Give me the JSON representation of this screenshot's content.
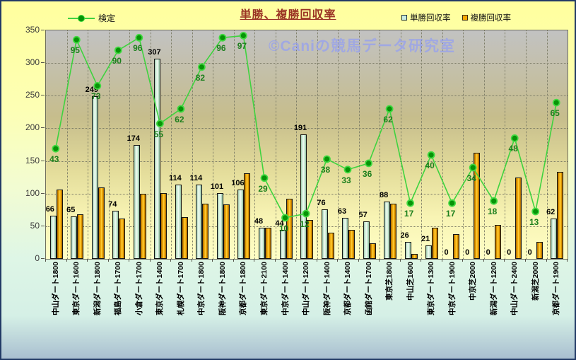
{
  "title": "単勝、複勝回収率",
  "watermark": "©Caniの競馬データ研究室",
  "legend": {
    "line_series": "検定",
    "bar_series_1": "単勝回収率",
    "bar_series_2": "複勝回収率"
  },
  "colors": {
    "title": "#9a3324",
    "kentei_line": "#3fd33f",
    "kentei_marker": "#079407",
    "kentei_label": "#1c7f1c",
    "tansho_fill": "#eefaf1",
    "fukusho_fill": "#f5a800",
    "watermark": "#9aa4ea",
    "plot_top": "#c2c2c2",
    "plot_bottom": "#ffffc6"
  },
  "y_ticks": [
    350,
    300,
    250,
    200,
    150,
    100,
    50,
    0
  ],
  "chart_data": {
    "type": "bar",
    "subtype": "grouped bars + line on hidden secondary axis",
    "title": "単勝、複勝回収率",
    "xlabel": "",
    "ylabel": "",
    "ylim": [
      0,
      350
    ],
    "ytick_step": 50,
    "grid": "dotted horizontal and vertical",
    "legend_position": "top",
    "categories": [
      "中山ダート1800",
      "東京ダート1600",
      "新潟ダート1800",
      "福島ダート1700",
      "小倉ダート1700",
      "東京ダート1400",
      "札幌ダート1700",
      "中京ダート1800",
      "阪神ダート1800",
      "京都ダート1800",
      "東京ダート2100",
      "中京ダート1400",
      "中山ダート1200",
      "阪神ダート1400",
      "京都ダート1400",
      "函館ダート1700",
      "東京芝1800",
      "中山芝1600",
      "東京ダート1300",
      "中京ダート1900",
      "中京芝2000",
      "新潟ダート1200",
      "中山ダート2400",
      "新潟芝2000",
      "京都ダート1900"
    ],
    "series": [
      {
        "name": "単勝回収率",
        "type": "bar",
        "data_labels": true,
        "values": [
          66,
          65,
          249,
          74,
          174,
          307,
          114,
          114,
          101,
          106,
          48,
          44,
          191,
          76,
          63,
          57,
          88,
          26,
          21,
          0,
          0,
          0,
          0,
          0,
          62
        ]
      },
      {
        "name": "複勝回収率",
        "type": "bar",
        "data_labels": false,
        "values": [
          106,
          68,
          110,
          62,
          100,
          101,
          64,
          85,
          84,
          131,
          48,
          92,
          60,
          40,
          45,
          24,
          85,
          8,
          48,
          38,
          163,
          52,
          125,
          26,
          133
        ]
      },
      {
        "name": "検定",
        "type": "line",
        "axis": "secondary",
        "data_labels": true,
        "values": [
          43,
          95,
          73,
          90,
          96,
          55,
          62,
          82,
          96,
          97,
          29,
          10,
          12,
          38,
          33,
          36,
          62,
          17,
          40,
          17,
          34,
          18,
          48,
          13,
          65
        ]
      }
    ]
  }
}
